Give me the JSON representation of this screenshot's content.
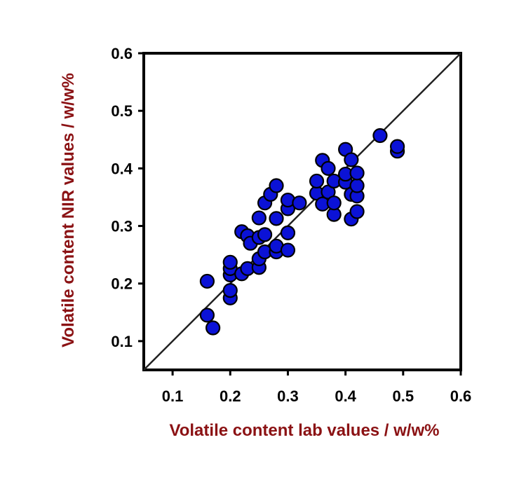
{
  "chart_data": {
    "type": "scatter",
    "title": "",
    "xlabel": "Volatile content lab values / w/w%",
    "ylabel": "Volatile content NIR values / w/w%",
    "xlim": [
      0.05,
      0.6
    ],
    "ylim": [
      0.05,
      0.6
    ],
    "x_ticks": [
      "0.1",
      "0.2",
      "0.3",
      "0.4",
      "0.5",
      "0.6"
    ],
    "y_ticks": [
      "0.1",
      "0.2",
      "0.3",
      "0.4",
      "0.5",
      "0.6"
    ],
    "grid": false,
    "legend": "none",
    "reference_line": {
      "type": "identity",
      "from": [
        0.05,
        0.05
      ],
      "to": [
        0.6,
        0.6
      ]
    },
    "series": [
      {
        "marker_color": "#0b12d6",
        "points": [
          [
            0.16,
            0.204
          ],
          [
            0.16,
            0.145
          ],
          [
            0.17,
            0.123
          ],
          [
            0.2,
            0.175
          ],
          [
            0.2,
            0.188
          ],
          [
            0.2,
            0.215
          ],
          [
            0.2,
            0.226
          ],
          [
            0.2,
            0.237
          ],
          [
            0.22,
            0.217
          ],
          [
            0.22,
            0.29
          ],
          [
            0.23,
            0.226
          ],
          [
            0.23,
            0.283
          ],
          [
            0.235,
            0.27
          ],
          [
            0.25,
            0.228
          ],
          [
            0.25,
            0.243
          ],
          [
            0.25,
            0.28
          ],
          [
            0.25,
            0.314
          ],
          [
            0.26,
            0.255
          ],
          [
            0.26,
            0.285
          ],
          [
            0.26,
            0.34
          ],
          [
            0.27,
            0.355
          ],
          [
            0.28,
            0.37
          ],
          [
            0.28,
            0.255
          ],
          [
            0.28,
            0.265
          ],
          [
            0.28,
            0.313
          ],
          [
            0.3,
            0.258
          ],
          [
            0.3,
            0.288
          ],
          [
            0.3,
            0.33
          ],
          [
            0.3,
            0.345
          ],
          [
            0.32,
            0.34
          ],
          [
            0.35,
            0.357
          ],
          [
            0.35,
            0.378
          ],
          [
            0.36,
            0.338
          ],
          [
            0.36,
            0.414
          ],
          [
            0.37,
            0.359
          ],
          [
            0.37,
            0.4
          ],
          [
            0.38,
            0.32
          ],
          [
            0.38,
            0.34
          ],
          [
            0.38,
            0.378
          ],
          [
            0.4,
            0.376
          ],
          [
            0.4,
            0.39
          ],
          [
            0.4,
            0.433
          ],
          [
            0.41,
            0.312
          ],
          [
            0.41,
            0.355
          ],
          [
            0.41,
            0.415
          ],
          [
            0.42,
            0.325
          ],
          [
            0.42,
            0.352
          ],
          [
            0.42,
            0.37
          ],
          [
            0.42,
            0.392
          ],
          [
            0.46,
            0.457
          ],
          [
            0.49,
            0.43
          ],
          [
            0.49,
            0.438
          ]
        ]
      }
    ],
    "colors": {
      "axis": "#000000",
      "reference_line": "#222222",
      "marker_fill": "#0b12d6",
      "marker_edge": "#000000",
      "axis_title": "#8b1214"
    }
  }
}
